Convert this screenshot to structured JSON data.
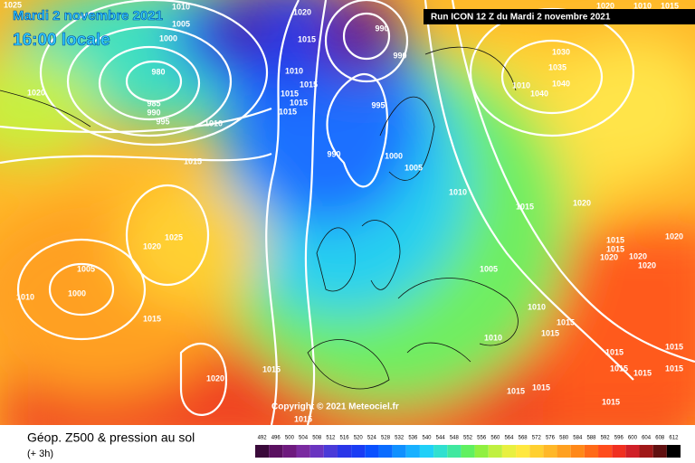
{
  "header": {
    "date": "Mardi 2 novembre 2021",
    "time": "16:00 locale",
    "run": "Run ICON 12 Z du Mardi 2 novembre 2021"
  },
  "copyright": "Copyright © 2021 Meteociel.fr",
  "isobar_labels": [
    "1025",
    "1010",
    "1005",
    "1000",
    "980",
    "985",
    "990",
    "995",
    "1020",
    "1015",
    "1010",
    "1020",
    "1015",
    "990",
    "990",
    "1010",
    "1015",
    "1015",
    "1015",
    "1015",
    "995",
    "990",
    "1000",
    "1005",
    "1010",
    "1030",
    "1035",
    "1040",
    "1040",
    "1010",
    "1015",
    "1020",
    "1025",
    "1020",
    "1005",
    "1000",
    "1010",
    "1015",
    "1005",
    "1010",
    "1015",
    "1015",
    "1010",
    "1015",
    "1020",
    "1015",
    "1015",
    "1015",
    "1020",
    "1015",
    "1015",
    "1020",
    "1020",
    "1020",
    "1015",
    "1015",
    "1015",
    "1015",
    "1015",
    "1015",
    "1020",
    "1010",
    "1015"
  ],
  "legend": {
    "title": "Géop. Z500 & pression au sol",
    "subtitle": "(+ 3h)",
    "ticks": [
      492,
      496,
      500,
      504,
      508,
      512,
      516,
      520,
      524,
      528,
      532,
      536,
      540,
      544,
      548,
      552,
      556,
      560,
      564,
      568,
      572,
      576,
      580,
      584,
      588,
      592,
      596,
      600,
      604,
      608,
      612
    ],
    "colors": [
      "#3a0a3a",
      "#5a1060",
      "#6e1a7e",
      "#7a2aa0",
      "#6a34c0",
      "#4a3ad8",
      "#2a36e8",
      "#1a3cf4",
      "#0a50ff",
      "#0a6cff",
      "#1090ff",
      "#18b0ff",
      "#20d0f8",
      "#30e0d0",
      "#40e8a0",
      "#60f060",
      "#90f040",
      "#c0f040",
      "#e8f040",
      "#ffe840",
      "#ffd030",
      "#ffb828",
      "#ffa020",
      "#ff8818",
      "#ff6a18",
      "#ff4c1c",
      "#f03020",
      "#d02028",
      "#a01818",
      "#601010",
      "#000000"
    ]
  }
}
